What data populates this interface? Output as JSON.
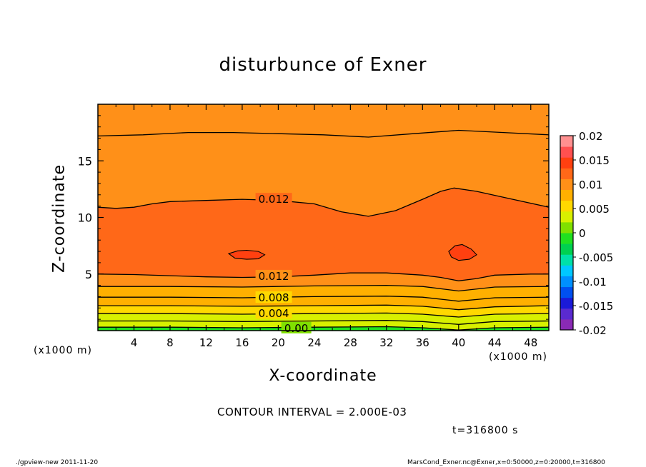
{
  "title": "disturbunce of Exner",
  "footer": {
    "left": "./gpview-new   2011-11-20",
    "right": "MarsCond_Exner.nc@Exner,x=0:50000,z=0:20000,t=316800"
  },
  "contour_interval": "CONTOUR INTERVAL = 2.000E-03",
  "time_label": "t=316800 s",
  "colors": {
    "levels": [
      "#8a2ab5",
      "#5a2ad0",
      "#1a1ad8",
      "#0050f0",
      "#0090ff",
      "#00c8ff",
      "#00e0a8",
      "#00d050",
      "#20e020",
      "#80e000",
      "#d8f000",
      "#ffd800",
      "#ffb000",
      "#ff9018",
      "#ff6818",
      "#ff4010",
      "#ff5050",
      "#ff9090"
    ],
    "contour_line": "#000000"
  },
  "chart_data": {
    "type": "heatmap",
    "title": "disturbunce of Exner",
    "xlabel": "X-coordinate",
    "ylabel": "Z-coordinate",
    "x_unit_label": "(x1000 m)",
    "xlim": [
      0,
      50
    ],
    "ylim": [
      0,
      20
    ],
    "x_ticks": [
      4,
      8,
      12,
      16,
      20,
      24,
      28,
      32,
      36,
      40,
      44,
      48
    ],
    "y_ticks": [
      5,
      10,
      15
    ],
    "colorbar": {
      "range": [
        -0.02,
        0.02
      ],
      "ticks": [
        "0.02",
        "0.015",
        "0.01",
        "0.005",
        "0",
        "-0.005",
        "-0.01",
        "-0.015",
        "-0.02"
      ]
    },
    "contour_interval": 0.002,
    "contour_labels": [
      {
        "text": "0.012",
        "x": 19.5,
        "y": 11.6
      },
      {
        "text": "0.012",
        "x": 19.5,
        "y": 4.8
      },
      {
        "text": "0.008",
        "x": 19.5,
        "y": 2.9
      },
      {
        "text": "0.004",
        "x": 19.5,
        "y": 1.5
      },
      {
        "text": "0.00",
        "x": 22,
        "y": 0.2
      }
    ],
    "contours": [
      {
        "level": 0.01,
        "points": [
          [
            0,
            17.2
          ],
          [
            5,
            17.3
          ],
          [
            10,
            17.5
          ],
          [
            15,
            17.5
          ],
          [
            20,
            17.4
          ],
          [
            25,
            17.3
          ],
          [
            30,
            17.1
          ],
          [
            35,
            17.4
          ],
          [
            40,
            17.7
          ],
          [
            45,
            17.5
          ],
          [
            50,
            17.3
          ]
        ]
      },
      {
        "level": 0.012,
        "points": [
          [
            0,
            10.9
          ],
          [
            2,
            10.8
          ],
          [
            4,
            10.9
          ],
          [
            6,
            11.2
          ],
          [
            8,
            11.4
          ],
          [
            12,
            11.5
          ],
          [
            16,
            11.6
          ],
          [
            20,
            11.5
          ],
          [
            24,
            11.2
          ],
          [
            27,
            10.5
          ],
          [
            30,
            10.1
          ],
          [
            33,
            10.6
          ],
          [
            36,
            11.6
          ],
          [
            38,
            12.3
          ],
          [
            39.5,
            12.6
          ],
          [
            42,
            12.3
          ],
          [
            46,
            11.6
          ],
          [
            50,
            10.9
          ]
        ]
      },
      {
        "level": 0.012,
        "points": [
          [
            0,
            5.0
          ],
          [
            4,
            4.95
          ],
          [
            8,
            4.85
          ],
          [
            12,
            4.75
          ],
          [
            16,
            4.7
          ],
          [
            20,
            4.75
          ],
          [
            24,
            4.9
          ],
          [
            28,
            5.1
          ],
          [
            32,
            5.1
          ],
          [
            36,
            4.9
          ],
          [
            38,
            4.7
          ],
          [
            40,
            4.4
          ],
          [
            42,
            4.6
          ],
          [
            44,
            4.9
          ],
          [
            48,
            5.0
          ],
          [
            50,
            5.0
          ]
        ]
      },
      {
        "level": 0.01,
        "points": [
          [
            0,
            3.9
          ],
          [
            8,
            3.9
          ],
          [
            16,
            3.85
          ],
          [
            24,
            3.95
          ],
          [
            32,
            4.0
          ],
          [
            36,
            3.9
          ],
          [
            40,
            3.5
          ],
          [
            44,
            3.85
          ],
          [
            50,
            3.9
          ]
        ]
      },
      {
        "level": 0.008,
        "points": [
          [
            0,
            2.95
          ],
          [
            8,
            2.95
          ],
          [
            16,
            2.9
          ],
          [
            24,
            3.0
          ],
          [
            32,
            3.05
          ],
          [
            36,
            2.95
          ],
          [
            40,
            2.6
          ],
          [
            44,
            2.9
          ],
          [
            50,
            2.95
          ]
        ]
      },
      {
        "level": 0.006,
        "points": [
          [
            0,
            2.2
          ],
          [
            8,
            2.2
          ],
          [
            16,
            2.15
          ],
          [
            24,
            2.2
          ],
          [
            32,
            2.25
          ],
          [
            36,
            2.15
          ],
          [
            40,
            1.85
          ],
          [
            44,
            2.1
          ],
          [
            50,
            2.2
          ]
        ]
      },
      {
        "level": 0.004,
        "points": [
          [
            0,
            1.5
          ],
          [
            8,
            1.5
          ],
          [
            16,
            1.45
          ],
          [
            24,
            1.5
          ],
          [
            32,
            1.55
          ],
          [
            36,
            1.45
          ],
          [
            40,
            1.2
          ],
          [
            44,
            1.45
          ],
          [
            50,
            1.5
          ]
        ]
      },
      {
        "level": 0.002,
        "points": [
          [
            0,
            0.85
          ],
          [
            8,
            0.85
          ],
          [
            16,
            0.8
          ],
          [
            24,
            0.85
          ],
          [
            32,
            0.9
          ],
          [
            36,
            0.8
          ],
          [
            40,
            0.55
          ],
          [
            44,
            0.8
          ],
          [
            50,
            0.85
          ]
        ]
      },
      {
        "level": 0.0,
        "points": [
          [
            0,
            0.3
          ],
          [
            8,
            0.3
          ],
          [
            16,
            0.25
          ],
          [
            24,
            0.3
          ],
          [
            32,
            0.35
          ],
          [
            36,
            0.25
          ],
          [
            40,
            0.05
          ],
          [
            44,
            0.25
          ],
          [
            50,
            0.3
          ]
        ]
      }
    ],
    "closed_contours": [
      {
        "level": 0.014,
        "points": [
          [
            14.5,
            6.8
          ],
          [
            15.5,
            7.05
          ],
          [
            16.5,
            7.1
          ],
          [
            17.8,
            7.0
          ],
          [
            18.5,
            6.7
          ],
          [
            17.8,
            6.35
          ],
          [
            16.5,
            6.3
          ],
          [
            15.2,
            6.4
          ]
        ]
      },
      {
        "level": 0.014,
        "points": [
          [
            38.9,
            7.0
          ],
          [
            39.6,
            7.5
          ],
          [
            40.4,
            7.6
          ],
          [
            41.4,
            7.2
          ],
          [
            42.0,
            6.7
          ],
          [
            41.2,
            6.3
          ],
          [
            40.0,
            6.2
          ],
          [
            39.2,
            6.5
          ]
        ]
      }
    ]
  }
}
